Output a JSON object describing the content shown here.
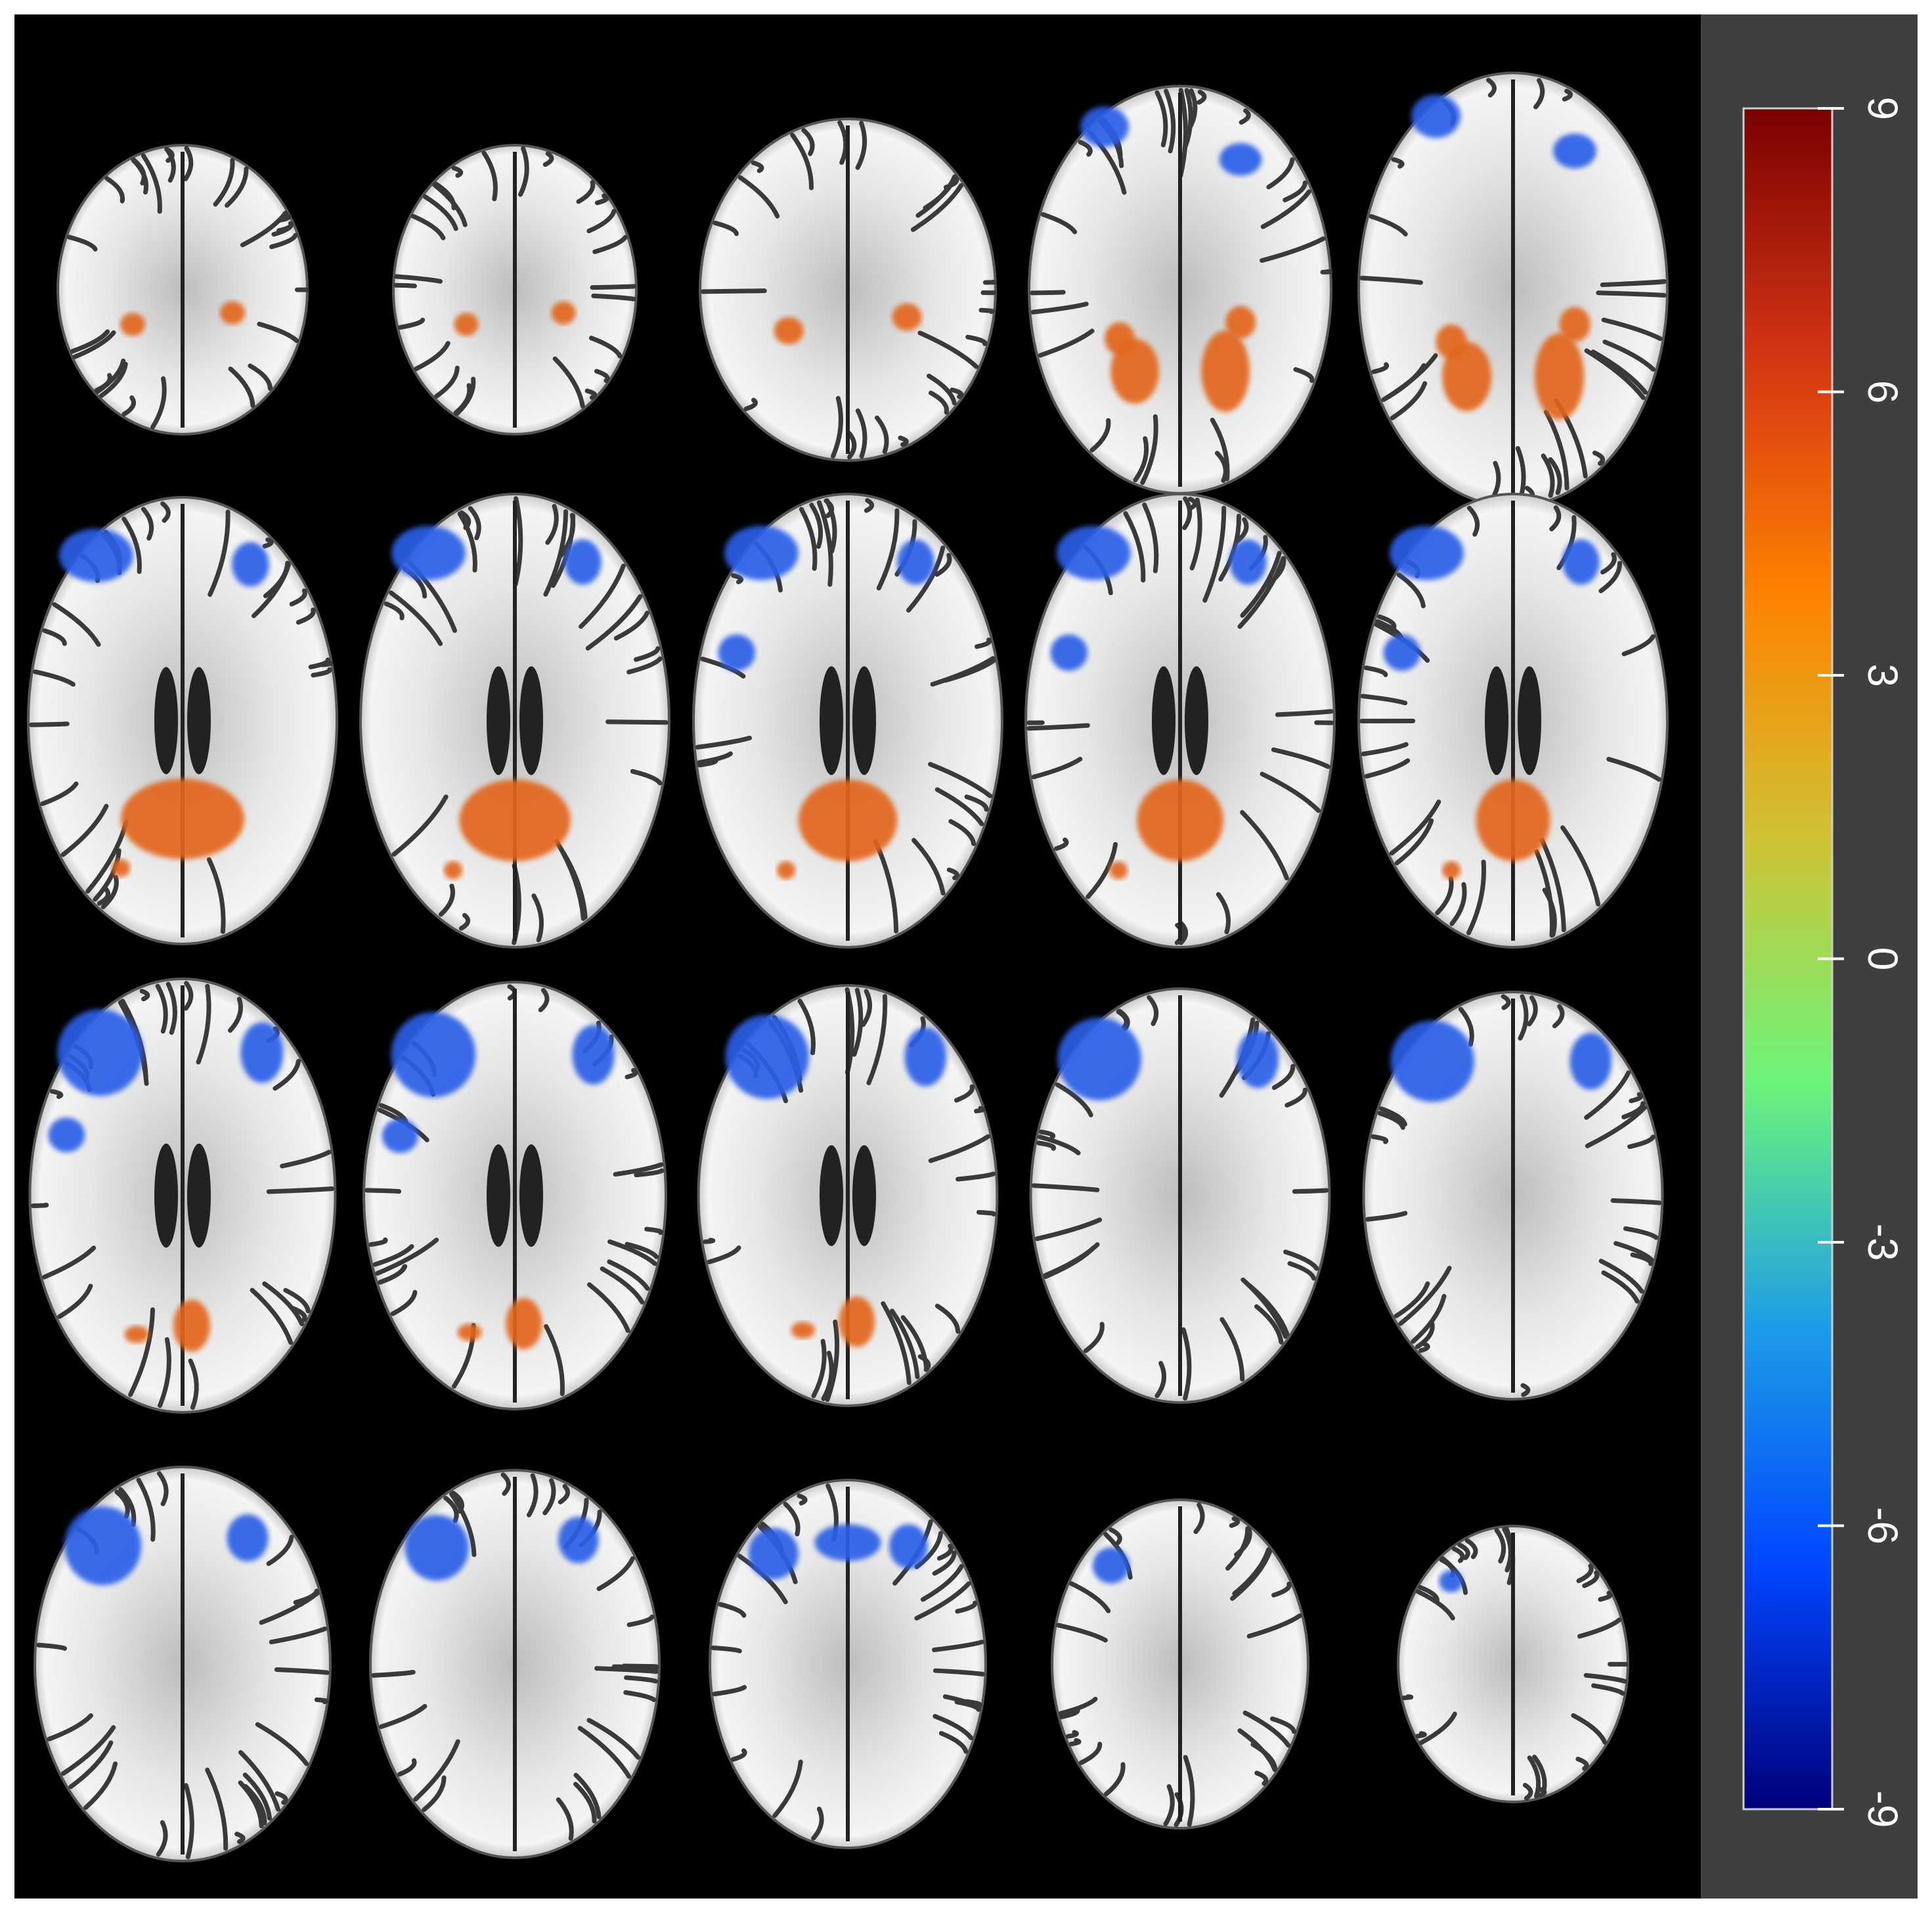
{
  "colorbar": {
    "lim": [
      -9,
      9
    ],
    "ticks": [
      -9,
      -6,
      -3,
      0,
      3,
      6,
      9
    ],
    "colors": [
      "#00007a",
      "#0046ff",
      "#1e9ee6",
      "#6cf57a",
      "#cfc233",
      "#ff8200",
      "#d23414",
      "#7a0000"
    ]
  }
}
